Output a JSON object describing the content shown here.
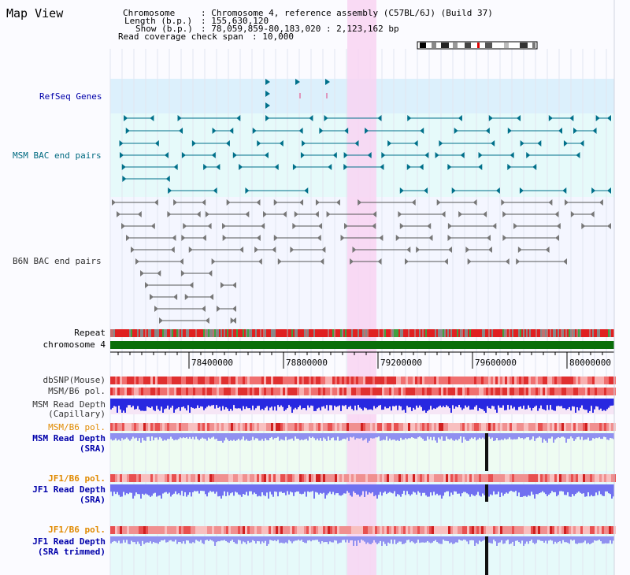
{
  "title": "Map View",
  "info": {
    "chromosome_label": "Chromosome",
    "chromosome_value": ": Chromosome 4, reference assembly (C57BL/6J) (Build 37)",
    "length_label": "Length (b.p.)",
    "length_value": ": 155,630,120",
    "show_label": "Show (b.p.)",
    "show_value": ": 78,059,859-80,183,020 : 2,123,162 bp",
    "coverage_label": "Read coverage check span",
    "coverage_value": ": 10,000"
  },
  "tracks": {
    "refseq": "RefSeq Genes",
    "msm_bac": "MSM BAC end pairs",
    "b6n_bac": "B6N BAC end pairs",
    "repeat": "Repeat",
    "chromosome": "chromosome 4",
    "dbsnp": "dbSNP(Mouse)",
    "msm_b6_pol": "MSM/B6 pol.",
    "msm_depth_cap_1": "MSM Read Depth",
    "msm_depth_cap_2": "(Capillary)",
    "msm_b6_pol_2": "MSM/B6 pol.",
    "msm_depth_sra_1": "MSM Read Depth",
    "msm_depth_sra_2": "(SRA)",
    "jf1_b6_pol": "JF1/B6 pol.",
    "jf1_depth_sra_1": "JF1 Read Depth",
    "jf1_depth_sra_2": "(SRA)",
    "jf1_b6_pol_2": "JF1/B6 pol.",
    "jf1_depth_trim_1": "JF1 Read Depth",
    "jf1_depth_trim_2": "(SRA trimmed)"
  },
  "axis": {
    "ticks": [
      "78400000",
      "78800000",
      "79200000",
      "79600000",
      "80000000"
    ]
  },
  "colors": {
    "refseq_bg": "#dcf0fc",
    "bac_bg": "#e6fafa",
    "highlight": "#f8d4f2",
    "chromosome": "#0a6e0a",
    "teal_feature": "#00708a",
    "grey_feature": "#555555",
    "depth_blue": "#2020e0",
    "depth_light": "#8080f0"
  }
}
